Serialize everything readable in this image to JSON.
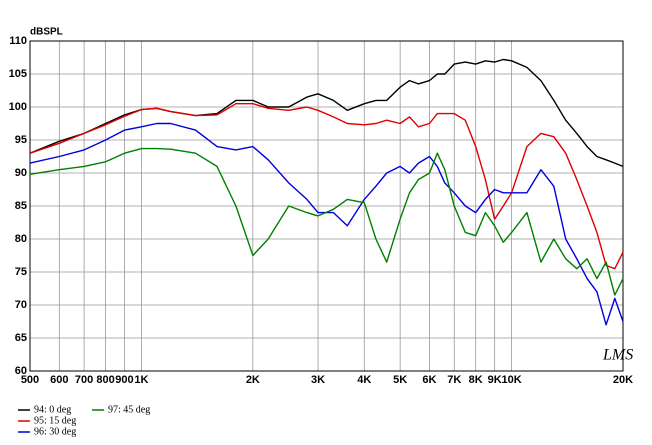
{
  "chart_data": {
    "type": "line",
    "y_label": "dBSPL",
    "annotation": "LMS",
    "log_x": true,
    "grid": true,
    "xlim": [
      500,
      20000
    ],
    "ylim": [
      60,
      110
    ],
    "xticks": [
      500,
      600,
      700,
      800,
      900,
      {
        "value": 1000,
        "label": "1K"
      },
      {
        "value": 2000,
        "label": "2K"
      },
      {
        "value": 3000,
        "label": "3K"
      },
      {
        "value": 4000,
        "label": "4K"
      },
      {
        "value": 5000,
        "label": "5K"
      },
      {
        "value": 6000,
        "label": "6K"
      },
      {
        "value": 7000,
        "label": "7K"
      },
      {
        "value": 8000,
        "label": "8K"
      },
      {
        "value": 9000,
        "label": "9K"
      },
      {
        "value": 10000,
        "label": "10K"
      },
      {
        "value": 20000,
        "label": "20K"
      }
    ],
    "yticks": [
      60,
      65,
      70,
      75,
      80,
      85,
      90,
      95,
      100,
      105,
      110
    ],
    "x": [
      500,
      600,
      700,
      800,
      900,
      1000,
      1100,
      1200,
      1400,
      1600,
      1800,
      2000,
      2200,
      2500,
      2800,
      3000,
      3300,
      3600,
      4000,
      4300,
      4600,
      5000,
      5300,
      5600,
      6000,
      6300,
      6600,
      7000,
      7500,
      8000,
      8500,
      9000,
      9500,
      10000,
      11000,
      12000,
      13000,
      14000,
      15000,
      16000,
      17000,
      18000,
      19000,
      20000
    ],
    "series": [
      {
        "name": "94: 0 deg",
        "color": "#000000",
        "values": [
          93,
          94.8,
          96,
          97.5,
          98.8,
          99.6,
          99.8,
          99.3,
          98.7,
          99,
          101,
          101,
          100,
          100,
          101.5,
          102,
          101,
          99.5,
          100.5,
          101,
          101,
          103,
          104,
          103.5,
          104,
          105,
          105,
          106.5,
          106.8,
          106.5,
          107,
          106.8,
          107.2,
          107,
          106,
          104,
          101,
          98,
          96,
          94,
          92.5,
          92,
          91.5,
          91
        ]
      },
      {
        "name": "95: 15 deg",
        "color": "#e00000",
        "values": [
          93,
          94.5,
          96,
          97.3,
          98.6,
          99.6,
          99.8,
          99.3,
          98.7,
          98.8,
          100.5,
          100.5,
          99.8,
          99.5,
          100,
          99.5,
          98.5,
          97.5,
          97.3,
          97.5,
          98,
          97.5,
          98.5,
          97,
          97.5,
          99,
          99,
          99,
          98,
          94,
          89,
          83,
          85,
          87,
          94,
          96,
          95.5,
          93,
          89,
          85,
          81,
          76,
          75.5,
          78
        ]
      },
      {
        "name": "96: 30 deg",
        "color": "#0000e0",
        "values": [
          91.5,
          92.5,
          93.5,
          95,
          96.5,
          97,
          97.5,
          97.5,
          96.5,
          94,
          93.5,
          94,
          92,
          88.5,
          86,
          84,
          84,
          82,
          86,
          88,
          90,
          91,
          90,
          91.5,
          92.5,
          91,
          88.5,
          87,
          85,
          84,
          86,
          87.5,
          87,
          87,
          87,
          90.5,
          88,
          80,
          77,
          74,
          72,
          67,
          71,
          67.5
        ]
      },
      {
        "name": "97: 45 deg",
        "color": "#008000",
        "values": [
          89.8,
          90.5,
          91,
          91.7,
          93,
          93.7,
          93.7,
          93.6,
          93,
          91,
          85,
          77.5,
          80,
          85,
          84,
          83.5,
          84.5,
          86,
          85.5,
          80,
          76.5,
          83,
          87,
          89,
          90,
          93,
          90.5,
          85,
          81,
          80.5,
          84,
          82,
          79.5,
          81,
          84,
          76.5,
          80,
          77,
          75.5,
          77,
          74,
          76.5,
          71.5,
          74
        ]
      }
    ]
  }
}
